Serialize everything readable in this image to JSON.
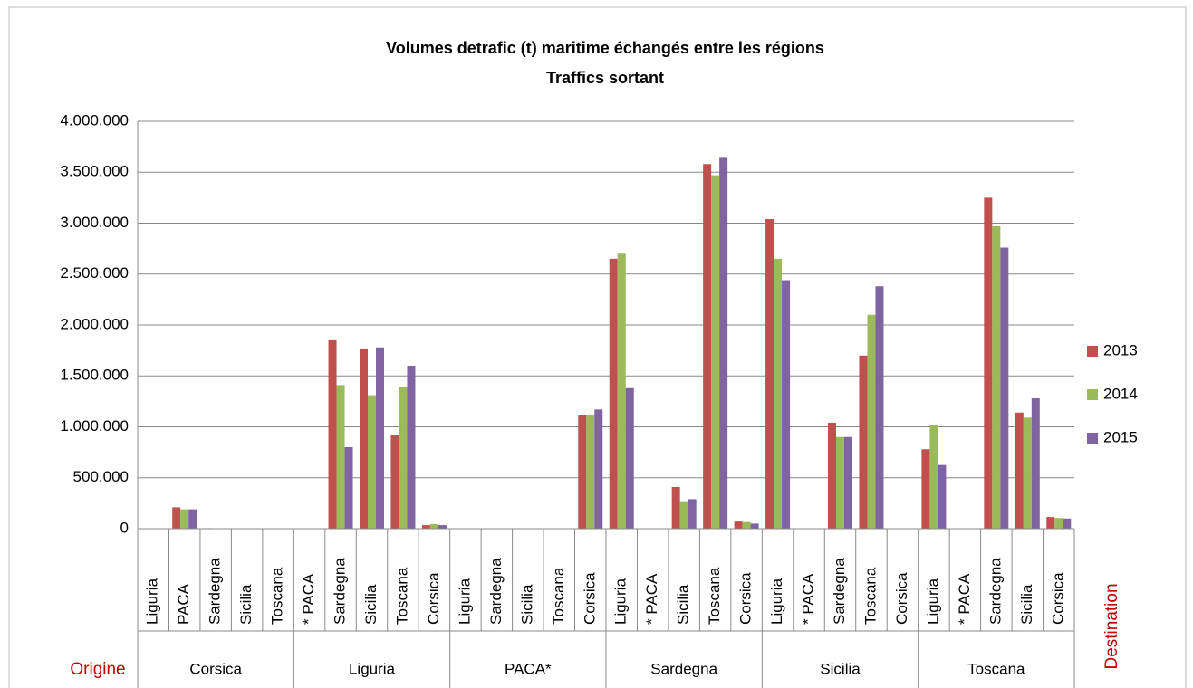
{
  "chart_data": {
    "type": "bar",
    "title": "Volumes detrafic (t) maritime échangés entre les régions",
    "subtitle": "Traffics sortant",
    "origin_label": "Origine",
    "destination_label": "Destination",
    "category_groups": [
      {
        "name": "Corsica",
        "categories": [
          "Liguria",
          "PACA",
          "Sardegna",
          "Sicilia",
          "Toscana"
        ]
      },
      {
        "name": "Liguria",
        "categories": [
          "* PACA",
          "Sardegna",
          "Sicilia",
          "Toscana",
          "Corsica"
        ]
      },
      {
        "name": "PACA*",
        "categories": [
          "Liguria",
          "Sardegna",
          "Sicilia",
          "Toscana",
          "Corsica"
        ]
      },
      {
        "name": "Sardegna",
        "categories": [
          "Liguria",
          "* PACA",
          "Sicilia",
          "Toscana",
          "Corsica"
        ]
      },
      {
        "name": "Sicilia",
        "categories": [
          "Liguria",
          "* PACA",
          "Sardegna",
          "Toscana",
          "Corsica"
        ]
      },
      {
        "name": "Toscana",
        "categories": [
          "Liguria",
          "* PACA",
          "Sardegna",
          "Sicilia",
          "Corsica"
        ]
      }
    ],
    "series": [
      {
        "name": "2013",
        "color": "#c0504d",
        "values": [
          0,
          210000,
          5000,
          0,
          0,
          0,
          1850000,
          1770000,
          920000,
          35000,
          0,
          0,
          0,
          0,
          1120000,
          2650000,
          0,
          410000,
          3580000,
          70000,
          3040000,
          0,
          1040000,
          1700000,
          0,
          780000,
          0,
          3250000,
          1140000,
          115000
        ]
      },
      {
        "name": "2014",
        "color": "#9bbb59",
        "values": [
          0,
          190000,
          0,
          0,
          0,
          0,
          1410000,
          1310000,
          1390000,
          45000,
          0,
          0,
          0,
          0,
          1120000,
          2700000,
          0,
          270000,
          3470000,
          65000,
          2650000,
          0,
          900000,
          2100000,
          0,
          1020000,
          0,
          2970000,
          1090000,
          105000
        ]
      },
      {
        "name": "2015",
        "color": "#8064a2",
        "values": [
          0,
          190000,
          0,
          0,
          0,
          0,
          800000,
          1780000,
          1600000,
          35000,
          0,
          0,
          0,
          0,
          1170000,
          1380000,
          0,
          290000,
          3650000,
          50000,
          2440000,
          0,
          900000,
          2380000,
          0,
          625000,
          0,
          2760000,
          1280000,
          100000
        ]
      }
    ],
    "ylim": [
      0,
      4000000
    ],
    "yticks": [
      0,
      {
        "value": 500000,
        "label": "500.000"
      },
      {
        "value": 1000000,
        "label": "1.000.000"
      },
      {
        "value": 1500000,
        "label": "1.500.000"
      },
      {
        "value": 2000000,
        "label": "2.000.000"
      },
      {
        "value": 2500000,
        "label": "2.500.000"
      },
      {
        "value": 3000000,
        "label": "3.000.000"
      },
      {
        "value": 3500000,
        "label": "3.500.000"
      },
      {
        "value": 4000000,
        "label": "4.000.000"
      }
    ],
    "grid": true,
    "legend": "right"
  }
}
